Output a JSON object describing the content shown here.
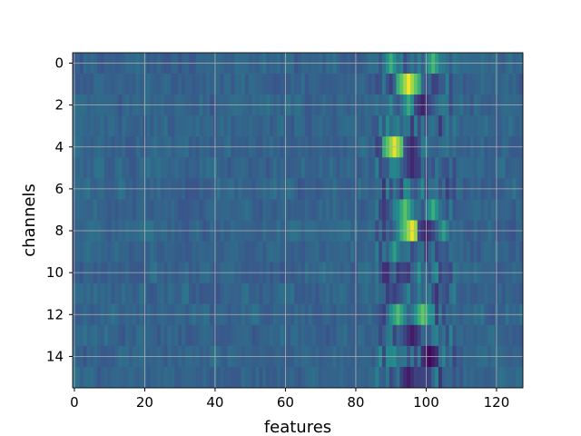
{
  "chart_data": {
    "type": "heatmap",
    "title": "",
    "xlabel": "features",
    "ylabel": "channels",
    "x_range": [
      -0.5,
      127.5
    ],
    "y_range": [
      -0.5,
      15.5
    ],
    "y_inverted": true,
    "n_rows": 16,
    "n_cols": 128,
    "x_ticks": [
      0,
      20,
      40,
      60,
      80,
      100,
      120
    ],
    "y_ticks": [
      0,
      2,
      4,
      6,
      8,
      10,
      12,
      14
    ],
    "grid": true,
    "colormap": "viridis",
    "colors": {
      "low": "#440154",
      "mid_low": "#3b528b",
      "mid": "#21918c",
      "mid_high": "#5ec962",
      "high": "#fde725",
      "grid": "#b0b0b0"
    },
    "hotspots": [
      {
        "row": 0,
        "col": 90,
        "value": 0.62
      },
      {
        "row": 0,
        "col": 102,
        "value": 0.66
      },
      {
        "row": 1,
        "col": 95,
        "value": 0.98
      },
      {
        "row": 2,
        "col": 95,
        "value": 0.6
      },
      {
        "row": 4,
        "col": 91,
        "value": 0.96
      },
      {
        "row": 7,
        "col": 94,
        "value": 0.72
      },
      {
        "row": 7,
        "col": 102,
        "value": 0.62
      },
      {
        "row": 8,
        "col": 96,
        "value": 0.97
      },
      {
        "row": 8,
        "col": 105,
        "value": 0.55
      },
      {
        "row": 12,
        "col": 92,
        "value": 0.68
      },
      {
        "row": 12,
        "col": 99,
        "value": 0.74
      },
      {
        "row": 9,
        "col": 91,
        "value": 0.55
      }
    ],
    "coldspots": [
      {
        "row": 14,
        "col": 101,
        "value": 0.02
      },
      {
        "row": 15,
        "col": 95,
        "value": 0.08
      },
      {
        "row": 2,
        "col": 99,
        "value": 0.1
      },
      {
        "row": 4,
        "col": 96,
        "value": 0.12
      },
      {
        "row": 8,
        "col": 100,
        "value": 0.1
      },
      {
        "row": 5,
        "col": 96,
        "value": 0.12
      },
      {
        "row": 13,
        "col": 96,
        "value": 0.08
      }
    ],
    "baseline_value": 0.32
  }
}
